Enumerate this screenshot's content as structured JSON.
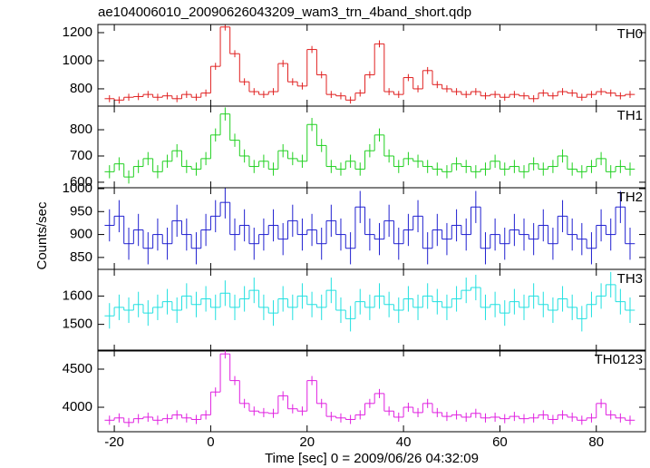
{
  "chart_data": [
    {
      "type": "step",
      "title": "ae104006010_20090626043209_wam3_trn_4band_short.qdp",
      "name": "TH0",
      "color": "#e02020",
      "error": 25,
      "x": [
        -21,
        -19,
        -17,
        -15,
        -13,
        -11,
        -9,
        -7,
        -5,
        -3,
        -1,
        1,
        3,
        5,
        7,
        9,
        11,
        13,
        15,
        17,
        19,
        21,
        23,
        25,
        27,
        29,
        31,
        33,
        35,
        37,
        39,
        41,
        43,
        45,
        47,
        49,
        51,
        53,
        55,
        57,
        59,
        61,
        63,
        65,
        67,
        69,
        71,
        73,
        75,
        77,
        79,
        81,
        83,
        85,
        87
      ],
      "values": [
        730,
        720,
        740,
        745,
        760,
        740,
        750,
        730,
        760,
        740,
        770,
        960,
        1240,
        1050,
        850,
        780,
        760,
        780,
        980,
        850,
        820,
        1080,
        900,
        760,
        750,
        720,
        770,
        900,
        1120,
        780,
        760,
        880,
        800,
        930,
        830,
        800,
        780,
        760,
        780,
        750,
        760,
        740,
        760,
        750,
        730,
        770,
        750,
        780,
        770,
        740,
        760,
        780,
        770,
        750,
        760
      ],
      "xlim": [
        -23.4,
        90.2
      ],
      "ylim": [
        677,
        1258
      ],
      "yticks": [
        800,
        1000,
        1200
      ]
    },
    {
      "type": "step",
      "name": "TH1",
      "color": "#20d020",
      "error": 25,
      "x": [
        -21,
        -19,
        -17,
        -15,
        -13,
        -11,
        -9,
        -7,
        -5,
        -3,
        -1,
        1,
        3,
        5,
        7,
        9,
        11,
        13,
        15,
        17,
        19,
        21,
        23,
        25,
        27,
        29,
        31,
        33,
        35,
        37,
        39,
        41,
        43,
        45,
        47,
        49,
        51,
        53,
        55,
        57,
        59,
        61,
        63,
        65,
        67,
        69,
        71,
        73,
        75,
        77,
        79,
        81,
        83,
        85,
        87
      ],
      "values": [
        640,
        670,
        620,
        660,
        690,
        640,
        680,
        720,
        660,
        650,
        690,
        780,
        860,
        760,
        700,
        660,
        680,
        650,
        720,
        690,
        680,
        820,
        740,
        660,
        650,
        680,
        650,
        720,
        780,
        700,
        660,
        690,
        680,
        660,
        650,
        640,
        670,
        660,
        640,
        650,
        680,
        650,
        660,
        640,
        670,
        650,
        660,
        700,
        650,
        640,
        660,
        690,
        640,
        660,
        650
      ],
      "xlim": [
        -23.4,
        90.2
      ],
      "ylim": [
        579,
        890
      ],
      "yticks": [
        600,
        700,
        800
      ]
    },
    {
      "type": "step",
      "name": "TH2",
      "color": "#2020d0",
      "error": 35,
      "ylabel": "Counts/sec",
      "x": [
        -21,
        -19,
        -17,
        -15,
        -13,
        -11,
        -9,
        -7,
        -5,
        -3,
        -1,
        1,
        3,
        5,
        7,
        9,
        11,
        13,
        15,
        17,
        19,
        21,
        23,
        25,
        27,
        29,
        31,
        33,
        35,
        37,
        39,
        41,
        43,
        45,
        47,
        49,
        51,
        53,
        55,
        57,
        59,
        61,
        63,
        65,
        67,
        69,
        71,
        73,
        75,
        77,
        79,
        81,
        83,
        85,
        87
      ],
      "values": [
        920,
        940,
        880,
        910,
        870,
        900,
        880,
        930,
        900,
        870,
        910,
        940,
        970,
        900,
        920,
        880,
        900,
        920,
        890,
        930,
        900,
        910,
        880,
        930,
        900,
        870,
        960,
        900,
        890,
        930,
        880,
        910,
        940,
        870,
        910,
        890,
        920,
        900,
        960,
        870,
        900,
        880,
        910,
        900,
        890,
        920,
        880,
        940,
        900,
        890,
        870,
        920,
        900,
        960,
        880
      ],
      "xlim": [
        -23.4,
        90.2
      ],
      "ylim": [
        824,
        1002
      ],
      "yticks": [
        850,
        900,
        950,
        1000
      ]
    },
    {
      "type": "step",
      "name": "TH3",
      "color": "#20e0e0",
      "error": 45,
      "x": [
        -21,
        -19,
        -17,
        -15,
        -13,
        -11,
        -9,
        -7,
        -5,
        -3,
        -1,
        1,
        3,
        5,
        7,
        9,
        11,
        13,
        15,
        17,
        19,
        21,
        23,
        25,
        27,
        29,
        31,
        33,
        35,
        37,
        39,
        41,
        43,
        45,
        47,
        49,
        51,
        53,
        55,
        57,
        59,
        61,
        63,
        65,
        67,
        69,
        71,
        73,
        75,
        77,
        79,
        81,
        83,
        85,
        87
      ],
      "values": [
        1530,
        1560,
        1550,
        1570,
        1540,
        1560,
        1580,
        1550,
        1600,
        1570,
        1590,
        1560,
        1610,
        1560,
        1590,
        1620,
        1560,
        1540,
        1590,
        1560,
        1600,
        1570,
        1560,
        1620,
        1550,
        1520,
        1580,
        1560,
        1600,
        1570,
        1550,
        1590,
        1560,
        1600,
        1580,
        1560,
        1590,
        1620,
        1630,
        1560,
        1570,
        1540,
        1580,
        1560,
        1600,
        1570,
        1550,
        1590,
        1560,
        1520,
        1570,
        1600,
        1640,
        1580,
        1550
      ],
      "xlim": [
        -23.4,
        90.2
      ],
      "ylim": [
        1406,
        1694
      ],
      "yticks": [
        1500,
        1600
      ]
    },
    {
      "type": "step",
      "name": "TH0123",
      "color": "#e020e0",
      "error": 60,
      "xlabel": "Time [sec] 0 = 2009/06/26 04:32:09",
      "x": [
        -21,
        -19,
        -17,
        -15,
        -13,
        -11,
        -9,
        -7,
        -5,
        -3,
        -1,
        1,
        3,
        5,
        7,
        9,
        11,
        13,
        15,
        17,
        19,
        21,
        23,
        25,
        27,
        29,
        31,
        33,
        35,
        37,
        39,
        41,
        43,
        45,
        47,
        49,
        51,
        53,
        55,
        57,
        59,
        61,
        63,
        65,
        67,
        69,
        71,
        73,
        75,
        77,
        79,
        81,
        83,
        85,
        87
      ],
      "values": [
        3830,
        3860,
        3800,
        3850,
        3870,
        3830,
        3850,
        3900,
        3860,
        3840,
        3900,
        4200,
        4700,
        4350,
        4050,
        3950,
        3930,
        3920,
        4150,
        3980,
        3950,
        4350,
        4050,
        3880,
        3860,
        3840,
        3900,
        4050,
        4180,
        3950,
        3870,
        4000,
        3930,
        4050,
        3930,
        3880,
        3900,
        3870,
        3920,
        3860,
        3870,
        3850,
        3880,
        3850,
        3860,
        3900,
        3840,
        3900,
        3870,
        3830,
        3860,
        4050,
        3900,
        3860,
        3830
      ],
      "xlim": [
        -23.4,
        90.2
      ],
      "ylim": [
        3679,
        4750
      ],
      "yticks": [
        4000,
        4500
      ],
      "xticks": [
        -20,
        0,
        20,
        40,
        60,
        80
      ]
    }
  ]
}
